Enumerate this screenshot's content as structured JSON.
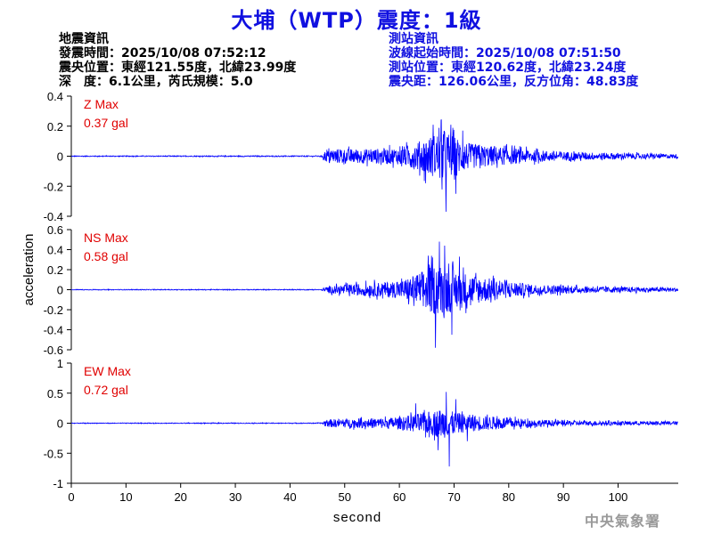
{
  "title": "大埔（WTP）震度：1級",
  "earthquake_info": {
    "heading": "地震資訊",
    "origin_time": "發震時間：2025/10/08 07:52:12",
    "epicenter": "震央位置：東經121.55度，北緯23.99度",
    "depth_magnitude": "深　度：6.1公里，芮氏規模：5.0"
  },
  "station_info": {
    "heading": "測站資訊",
    "waveform_start": "波線起始時間：2025/10/08 07:51:50",
    "station_location": "測站位置：東經120.62度，北緯23.24度",
    "distance_azimuth": "震央距：126.06公里，反方位角：48.83度"
  },
  "credit": "中央氣象署",
  "colors": {
    "title": "#1010e0",
    "trace": "#0000ff",
    "peak_label": "#e00000",
    "station_text": "#1010e0",
    "credit": "#9a9a9a"
  },
  "chart_data": {
    "type": "line",
    "xlabel": "second",
    "ylabel": "acceleration",
    "xlim": [
      0,
      111
    ],
    "x_ticks": [
      0,
      10,
      20,
      30,
      40,
      50,
      60,
      70,
      80,
      90,
      100
    ],
    "x_tick_labels": [
      "0",
      "10",
      "20",
      "30",
      "40",
      "50",
      "60",
      "70",
      "80",
      "90",
      "100"
    ],
    "p_arrival": 46,
    "panels": [
      {
        "component": "Z",
        "peak_label": "Z Max",
        "peak_value": "0.37 gal",
        "ylim": [
          -0.4,
          0.4
        ],
        "y_ticks": [
          -0.4,
          -0.2,
          0,
          0.2,
          0.4
        ],
        "y_tick_labels": [
          "-0.4",
          "-0.2",
          "0",
          "0.2",
          "0.4"
        ],
        "envelope": [
          [
            0,
            0.004
          ],
          [
            45.8,
            0.005
          ],
          [
            46.3,
            0.05
          ],
          [
            48,
            0.07
          ],
          [
            55,
            0.07
          ],
          [
            60,
            0.08
          ],
          [
            63,
            0.13
          ],
          [
            66,
            0.2
          ],
          [
            68,
            0.26
          ],
          [
            70,
            0.19
          ],
          [
            73,
            0.12
          ],
          [
            78,
            0.09
          ],
          [
            84,
            0.06
          ],
          [
            92,
            0.04
          ],
          [
            100,
            0.03
          ],
          [
            111,
            0.02
          ]
        ],
        "peaks": [
          [
            68.5,
            -0.37
          ],
          [
            67.6,
            0.24
          ],
          [
            69.4,
            0.21
          ],
          [
            66.2,
            0.21
          ],
          [
            70.3,
            -0.25
          ],
          [
            64.8,
            -0.18
          ],
          [
            71.6,
            0.17
          ]
        ]
      },
      {
        "component": "NS",
        "peak_label": "NS Max",
        "peak_value": "0.58 gal",
        "ylim": [
          -0.6,
          0.6
        ],
        "y_ticks": [
          -0.6,
          -0.4,
          -0.2,
          0,
          0.2,
          0.4,
          0.6
        ],
        "y_tick_labels": [
          "-0.6",
          "-0.4",
          "-0.2",
          "0",
          "0.2",
          "0.4",
          "0.6"
        ],
        "envelope": [
          [
            0,
            0.005
          ],
          [
            45.8,
            0.006
          ],
          [
            46.3,
            0.04
          ],
          [
            48,
            0.06
          ],
          [
            55,
            0.1
          ],
          [
            60,
            0.12
          ],
          [
            63,
            0.22
          ],
          [
            66,
            0.35
          ],
          [
            68,
            0.36
          ],
          [
            70,
            0.3
          ],
          [
            73,
            0.22
          ],
          [
            78,
            0.14
          ],
          [
            84,
            0.08
          ],
          [
            92,
            0.05
          ],
          [
            100,
            0.04
          ],
          [
            111,
            0.03
          ]
        ],
        "peaks": [
          [
            66.6,
            -0.58
          ],
          [
            67.3,
            0.48
          ],
          [
            68.3,
            0.44
          ],
          [
            69.6,
            -0.45
          ],
          [
            65.3,
            0.34
          ],
          [
            71.0,
            0.33
          ]
        ]
      },
      {
        "component": "EW",
        "peak_label": "EW Max",
        "peak_value": "0.72 gal",
        "ylim": [
          -1,
          1
        ],
        "y_ticks": [
          -1,
          -0.5,
          0,
          0.5,
          1
        ],
        "y_tick_labels": [
          "-1",
          "-0.5",
          "0",
          "0.5",
          "1"
        ],
        "envelope": [
          [
            0,
            0.008
          ],
          [
            45.8,
            0.01
          ],
          [
            46.3,
            0.08
          ],
          [
            48,
            0.1
          ],
          [
            55,
            0.12
          ],
          [
            60,
            0.14
          ],
          [
            63,
            0.22
          ],
          [
            66,
            0.3
          ],
          [
            68,
            0.36
          ],
          [
            70,
            0.26
          ],
          [
            73,
            0.2
          ],
          [
            78,
            0.15
          ],
          [
            84,
            0.09
          ],
          [
            92,
            0.06
          ],
          [
            100,
            0.05
          ],
          [
            111,
            0.04
          ]
        ],
        "peaks": [
          [
            69.1,
            -0.72
          ],
          [
            68.6,
            0.52
          ],
          [
            67.1,
            -0.45
          ],
          [
            70.3,
            0.4
          ],
          [
            63.0,
            0.33
          ],
          [
            72.4,
            -0.3
          ]
        ]
      }
    ]
  }
}
